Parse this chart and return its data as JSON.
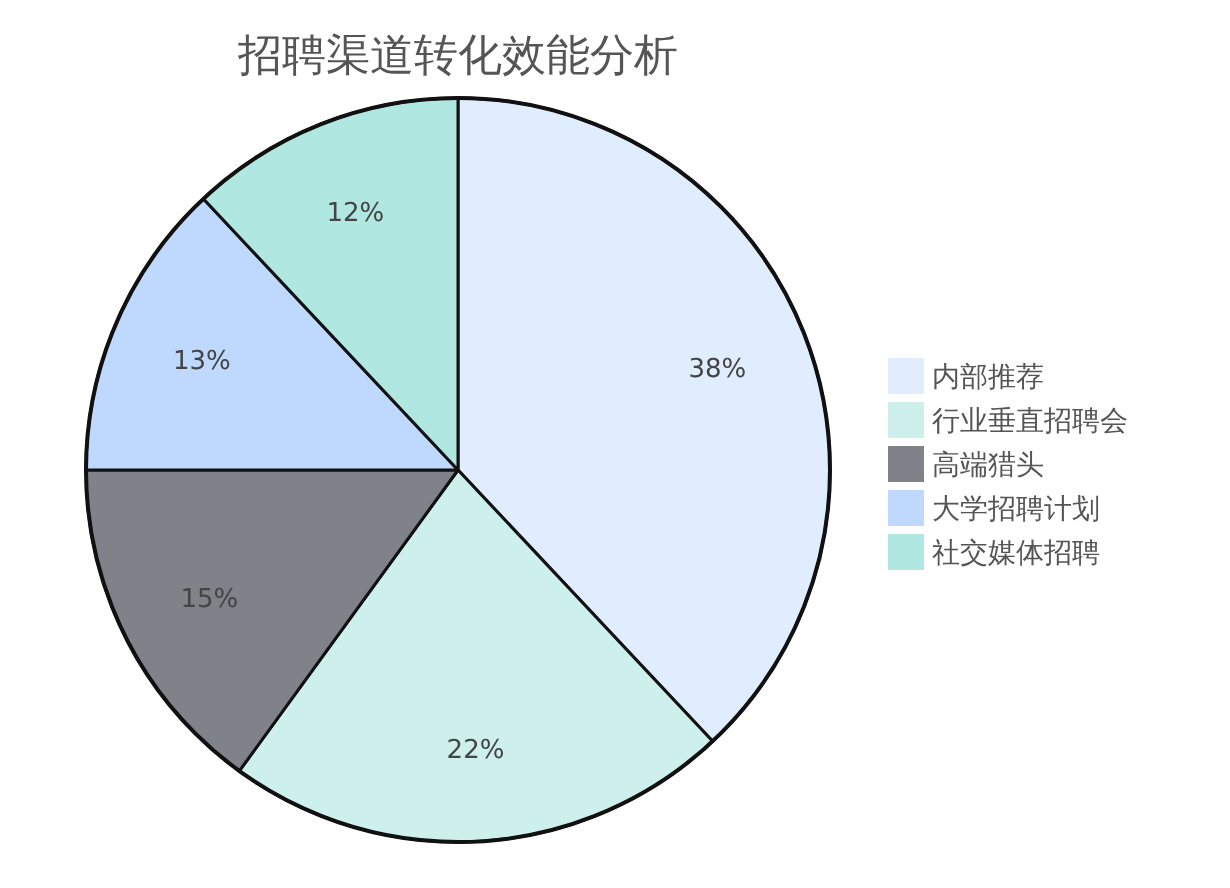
{
  "chart_data": {
    "type": "pie",
    "title": "招聘渠道转化效能分析",
    "categories": [
      "内部推荐",
      "行业垂直招聘会",
      "高端猎头",
      "大学招聘计划",
      "社交媒体招聘"
    ],
    "values": [
      38,
      22,
      15,
      13,
      12
    ],
    "value_labels": [
      "38%",
      "22%",
      "15%",
      "13%",
      "12%"
    ],
    "colors": [
      "#dfedfe",
      "#cdf0ec",
      "#7f8389",
      "#bed8fe",
      "#b1e7e1"
    ],
    "legend": "right"
  }
}
